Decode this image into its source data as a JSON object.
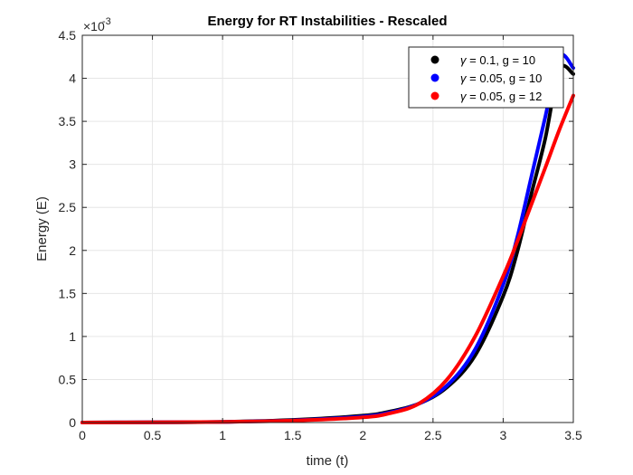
{
  "chart_data": {
    "type": "line",
    "title": "Energy for RT Instabilities - Rescaled",
    "xlabel": "time (t)",
    "ylabel": "Energy (E)",
    "y_exponent_label": "×10",
    "y_exponent": "-3",
    "xlim": [
      0,
      3.5
    ],
    "ylim": [
      0,
      0.0045
    ],
    "xticks": [
      "0",
      "0.5",
      "1",
      "1.5",
      "2",
      "2.5",
      "3",
      "3.5"
    ],
    "yticks": [
      "0",
      "0.5",
      "1",
      "1.5",
      "2",
      "2.5",
      "3",
      "3.5",
      "4",
      "4.5"
    ],
    "grid": true,
    "legend_position": "top-right",
    "series": [
      {
        "name": "γ = 0.1, g = 10",
        "legend_symbol": "γ",
        "legend_rest": " = 0.1, g = 10",
        "color": "#000000",
        "x": [
          0,
          0.5,
          1,
          1.5,
          2,
          2.2,
          2.4,
          2.6,
          2.8,
          3.0,
          3.1,
          3.2,
          3.3,
          3.4,
          3.5
        ],
        "y": [
          0,
          2e-06,
          8e-06,
          3e-05,
          8e-05,
          0.00013,
          0.00022,
          0.00041,
          0.00078,
          0.00147,
          0.00198,
          0.00265,
          0.0033,
          0.0041,
          0.00405
        ]
      },
      {
        "name": "γ = 0.05, g = 10",
        "legend_symbol": "γ",
        "legend_rest": " = 0.05, g = 10",
        "color": "#0000ff",
        "x": [
          0,
          0.5,
          1,
          1.5,
          2,
          2.2,
          2.4,
          2.6,
          2.8,
          3.0,
          3.1,
          3.2,
          3.3,
          3.4,
          3.5
        ],
        "y": [
          0,
          2e-06,
          7e-06,
          2.5e-05,
          7e-05,
          0.00012,
          0.00022,
          0.00043,
          0.00085,
          0.0016,
          0.00215,
          0.00285,
          0.00355,
          0.00425,
          0.00412
        ]
      },
      {
        "name": "γ = 0.05, g = 12",
        "legend_symbol": "γ",
        "legend_rest": " = 0.05, g = 12",
        "color": "#ff0000",
        "x": [
          0,
          0.5,
          1,
          1.5,
          2,
          2.2,
          2.4,
          2.6,
          2.8,
          3.0,
          3.1,
          3.2,
          3.3,
          3.4,
          3.5
        ],
        "y": [
          0,
          2e-06,
          7e-06,
          2.2e-05,
          6e-05,
          0.00011,
          0.00022,
          0.0005,
          0.001,
          0.0017,
          0.0021,
          0.00253,
          0.00296,
          0.0034,
          0.0038
        ]
      }
    ]
  }
}
